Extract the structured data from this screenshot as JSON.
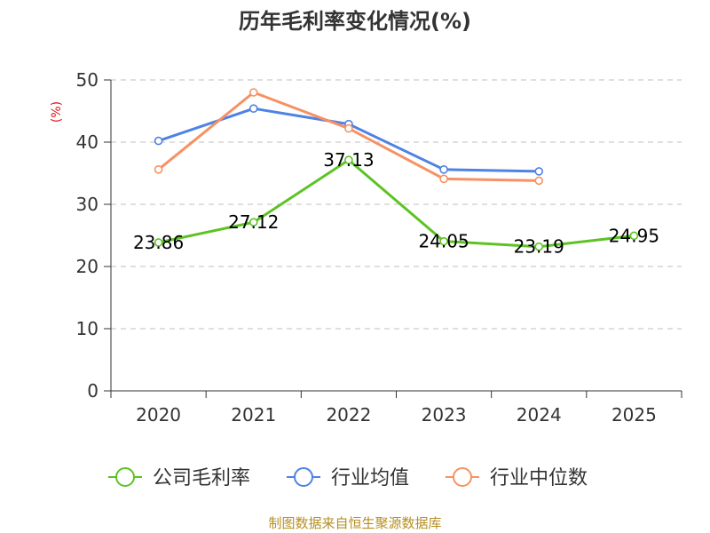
{
  "chart_data": {
    "type": "line",
    "title": "历年毛利率变化情况(%)",
    "ylabel": "(%)",
    "xlabel": "",
    "categories": [
      "2020",
      "2021",
      "2022",
      "2023",
      "2024",
      "2025"
    ],
    "ylim": [
      0,
      50
    ],
    "yticks": [
      0,
      10,
      20,
      30,
      40,
      50
    ],
    "grid": true,
    "legend_position": "bottom",
    "series": [
      {
        "name": "公司毛利率",
        "color": "#5cc323",
        "values": [
          23.86,
          27.12,
          37.13,
          24.05,
          23.19,
          24.95
        ],
        "labels": [
          "23.86",
          "27.12",
          "37.13",
          "24.05",
          "23.19",
          "24.95"
        ]
      },
      {
        "name": "行业均值",
        "color": "#4e82e4",
        "values": [
          40.2,
          45.4,
          42.9,
          35.6,
          35.3,
          null
        ]
      },
      {
        "name": "行业中位数",
        "color": "#f79163",
        "values": [
          35.6,
          48.0,
          42.2,
          34.1,
          33.8,
          null
        ]
      }
    ]
  },
  "colors": {
    "axis": "#333333",
    "grid": "#cccccc",
    "ylabel": "#e4151c",
    "source": "#b58f22"
  },
  "source_text": "制图数据来自恒生聚源数据库"
}
